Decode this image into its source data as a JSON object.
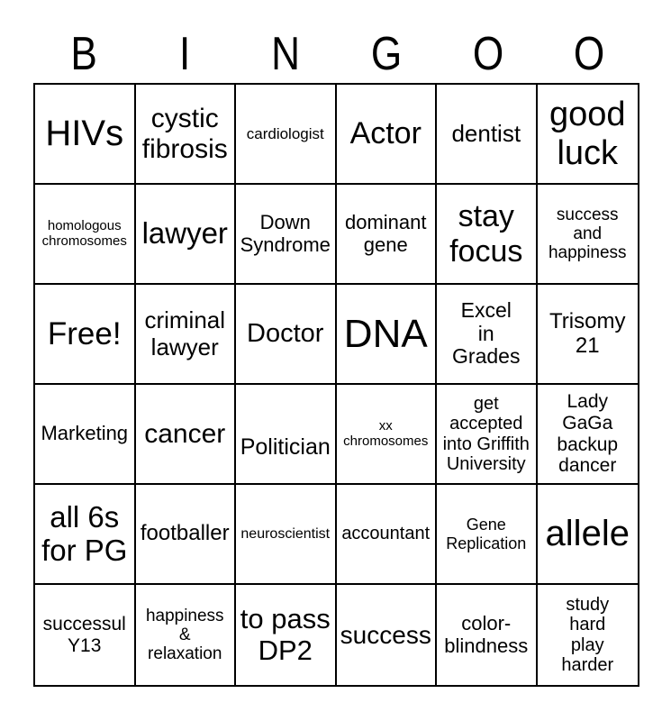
{
  "colors": {
    "background": "#ffffff",
    "grid_line": "#000000",
    "text": "#000000"
  },
  "header": {
    "letters": [
      "B",
      "I",
      "N",
      "G",
      "O",
      "O"
    ]
  },
  "grid": {
    "rows": [
      [
        "HIVs",
        "cystic\nfibrosis",
        "cardiologist",
        "Actor",
        "dentist",
        "good\nluck"
      ],
      [
        "homologous\nchromosomes",
        "lawyer",
        "Down\nSyndrome",
        "dominant\ngene",
        "stay\nfocus",
        "success\nand\nhappiness"
      ],
      [
        "Free!",
        "criminal\nlawyer",
        "Doctor",
        "DNA",
        "Excel\nin\nGrades",
        "Trisomy\n21"
      ],
      [
        "Marketing",
        "cancer",
        "Politician",
        "xx\nchromosomes",
        "get\naccepted\ninto Griffith\nUniversity",
        "Lady\nGaGa\nbackup\ndancer"
      ],
      [
        "all 6s\nfor PG",
        "footballer",
        "neuroscientist",
        "accountant",
        "Gene\nReplication",
        "allele"
      ],
      [
        "successul\nY13",
        "happiness\n&\nrelaxation",
        "to pass\nDP2",
        "success",
        "color-\nblindness",
        "study\nhard\nplay\nharder"
      ]
    ],
    "free_cell": "Free!"
  }
}
